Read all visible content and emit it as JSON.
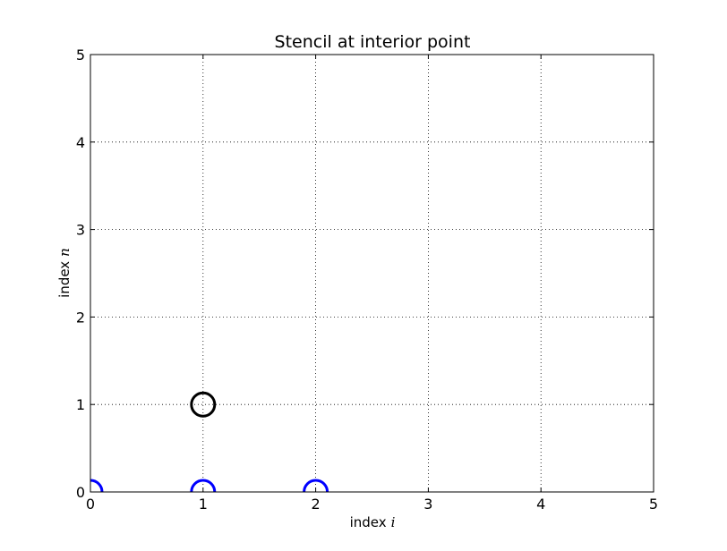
{
  "chart_data": {
    "type": "scatter",
    "title": "Stencil at interior point",
    "xlabel": "index",
    "xlabel_symbol": "i",
    "ylabel": "index",
    "ylabel_symbol": "n",
    "xlim": [
      0,
      5
    ],
    "ylim": [
      0,
      5
    ],
    "xticks": [
      "0",
      "1",
      "2",
      "3",
      "4",
      "5"
    ],
    "yticks": [
      "0",
      "1",
      "2",
      "3",
      "4",
      "5"
    ],
    "grid": true,
    "grid_style": "dotted",
    "series": [
      {
        "color": "#0000ff",
        "marker": "circle-open",
        "points": [
          [
            0,
            0
          ],
          [
            1,
            0
          ],
          [
            2,
            0
          ]
        ]
      },
      {
        "color": "#000000",
        "marker": "circle-open",
        "points": [
          [
            1,
            1
          ]
        ]
      }
    ]
  }
}
